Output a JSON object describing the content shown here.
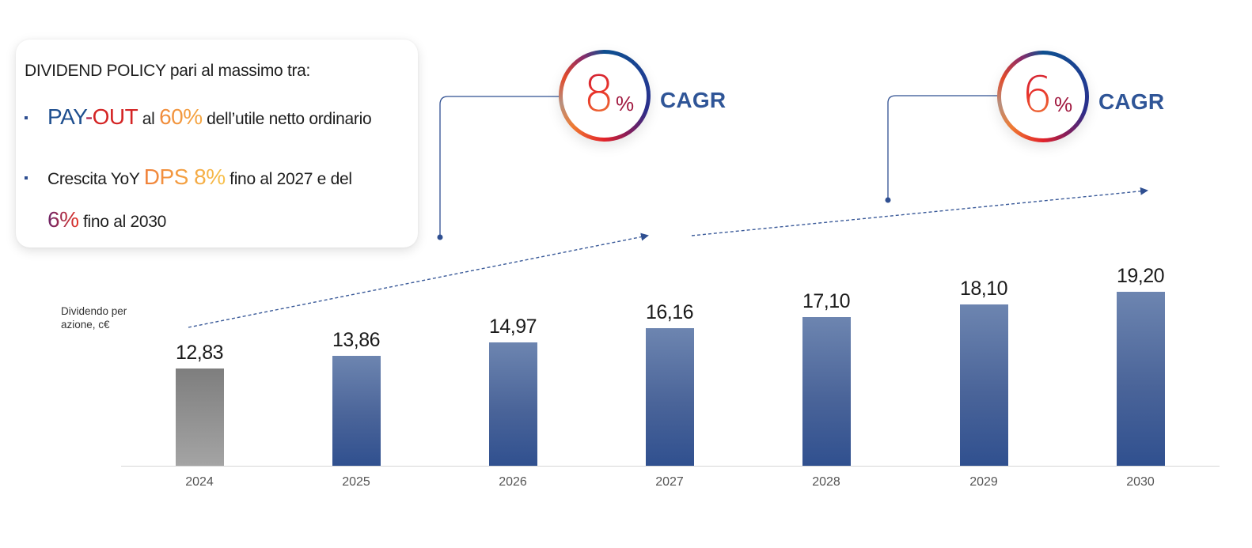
{
  "policy_card": {
    "title": "DIVIDEND POLICY pari al massimo tra:",
    "bullet1": {
      "pay": "PAY",
      "dash": "-",
      "out": "OUT",
      "al": " al ",
      "pct": "60%",
      "rest": " dell’utile netto ordinario"
    },
    "bullet2": {
      "pre": "Crescita YoY ",
      "dps": "DPS 8%",
      "rest": " fino al 2027 e del"
    },
    "bullet2_line2": {
      "pct": "6%",
      "rest": " fino al 2030"
    }
  },
  "cagr_badges": [
    {
      "number": "8",
      "percent": "%",
      "label": "CAGR",
      "period": "2024-2027"
    },
    {
      "number": "6",
      "percent": "%",
      "label": "CAGR",
      "period": "2027-2030"
    }
  ],
  "colors": {
    "bar_actual": "#8f8f8f",
    "bar_forecast": "#4a6499",
    "cagr_label": "#2f5597",
    "connector": "#2f4f91"
  },
  "chart_data": {
    "type": "bar",
    "title": "",
    "ylabel": "Dividendo per azione, c€",
    "xlabel": "",
    "categories": [
      "2024",
      "2025",
      "2026",
      "2027",
      "2028",
      "2029",
      "2030"
    ],
    "values": [
      12.83,
      13.86,
      14.97,
      16.16,
      17.1,
      18.1,
      19.2
    ],
    "value_labels": [
      "12,83",
      "13,86",
      "14,97",
      "16,16",
      "17,10",
      "18,10",
      "19,20"
    ],
    "bar_colors": [
      "gray",
      "blue",
      "blue",
      "blue",
      "blue",
      "blue",
      "blue"
    ],
    "annotations": [
      {
        "text": "8% CAGR",
        "from": "2024",
        "to": "2027"
      },
      {
        "text": "6% CAGR",
        "from": "2027",
        "to": "2030"
      }
    ],
    "grid": false,
    "legend": "none"
  },
  "axis": {
    "ylabel_line1": "Dividendo per",
    "ylabel_line2": "azione, c€"
  }
}
